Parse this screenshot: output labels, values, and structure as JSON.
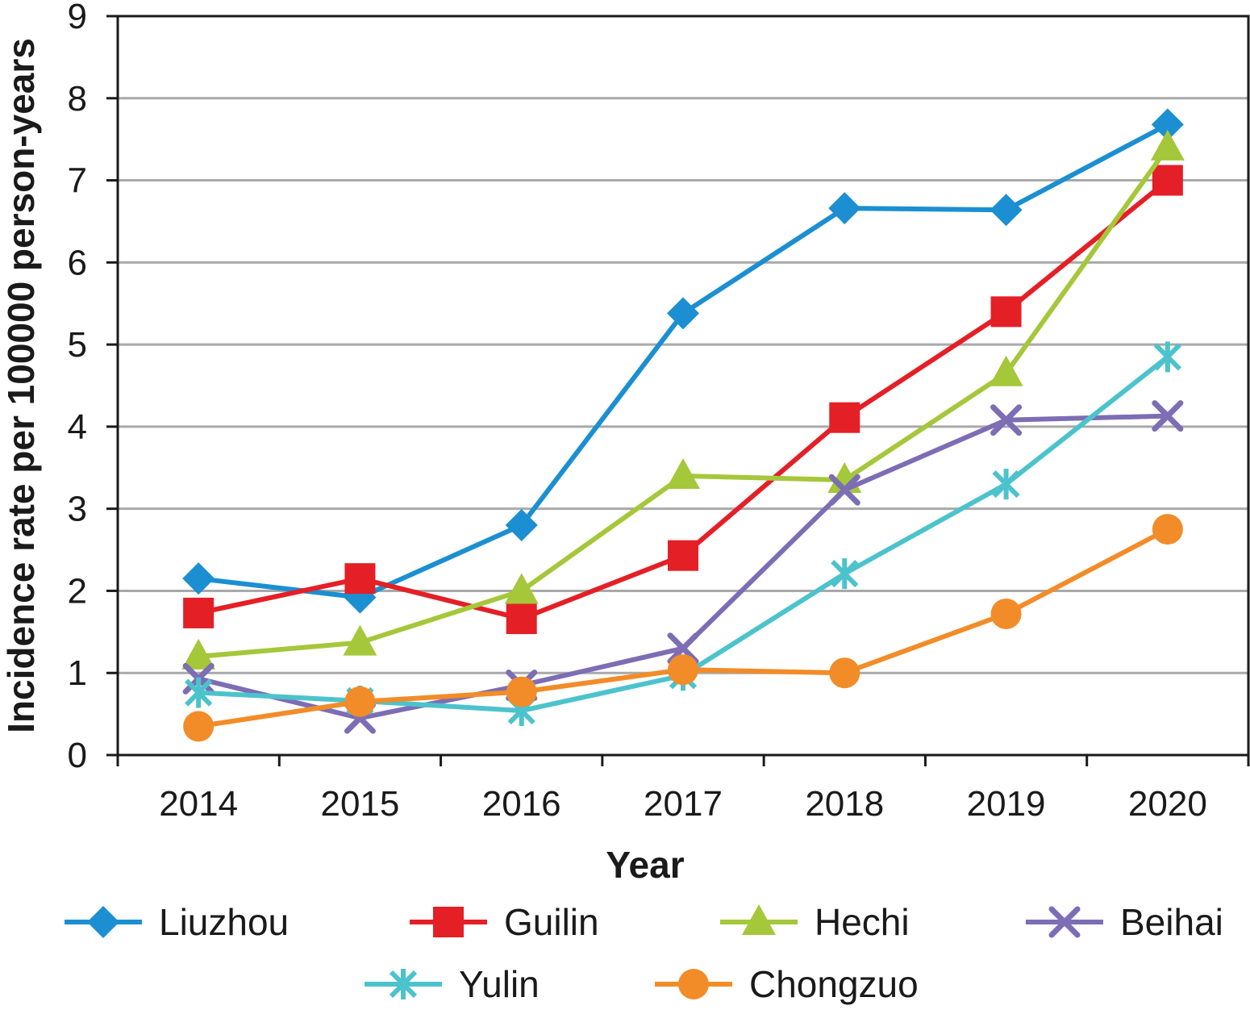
{
  "chart_data": {
    "type": "line",
    "title": "",
    "xlabel": "Year",
    "ylabel": "Incidence rate per 100000 person-years",
    "categories": [
      "2014",
      "2015",
      "2016",
      "2017",
      "2018",
      "2019",
      "2020"
    ],
    "ylim": [
      0,
      9
    ],
    "yticks": [
      "0",
      "1",
      "2",
      "3",
      "4",
      "5",
      "6",
      "7",
      "8",
      "9"
    ],
    "grid": "horizontal",
    "legend_position": "bottom",
    "series": [
      {
        "name": "Liuzhou",
        "color": "#1b8fd1",
        "marker": "diamond",
        "values": [
          2.15,
          1.92,
          2.8,
          5.38,
          6.66,
          6.64,
          7.68
        ]
      },
      {
        "name": "Guilin",
        "color": "#e41f26",
        "marker": "square",
        "values": [
          1.73,
          2.15,
          1.66,
          2.43,
          4.11,
          5.4,
          7.0
        ]
      },
      {
        "name": "Hechi",
        "color": "#a5c73a",
        "marker": "triangle",
        "values": [
          1.2,
          1.37,
          2.0,
          3.4,
          3.35,
          4.65,
          7.4
        ]
      },
      {
        "name": "Beihai",
        "color": "#7d6db4",
        "marker": "x",
        "values": [
          0.93,
          0.45,
          0.85,
          1.3,
          3.23,
          4.08,
          4.13
        ]
      },
      {
        "name": "Yulin",
        "color": "#4cc3cc",
        "marker": "asterisk",
        "values": [
          0.76,
          0.66,
          0.54,
          0.97,
          2.21,
          3.3,
          4.85
        ]
      },
      {
        "name": "Chongzuo",
        "color": "#f28c28",
        "marker": "circle",
        "values": [
          0.35,
          0.65,
          0.77,
          1.04,
          1.0,
          1.72,
          2.75
        ]
      }
    ]
  }
}
